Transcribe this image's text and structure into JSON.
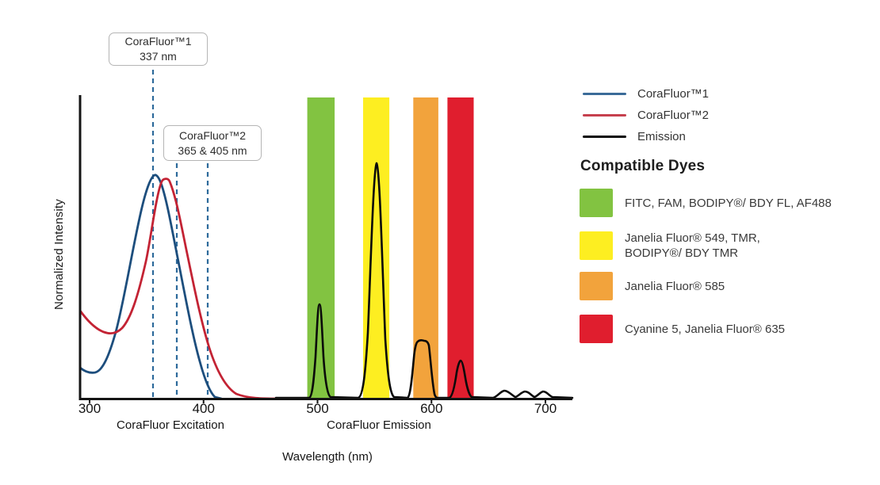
{
  "figure": {
    "y_axis_label": "Normalized Intensity",
    "x_axis_label": "Wavelength (nm)",
    "section_labels": {
      "excitation": "CoraFluor Excitation",
      "emission": "CoraFluor Emission"
    },
    "callout1": {
      "line1": "CoraFluor™1",
      "line2": "337 nm"
    },
    "callout2": {
      "line1": "CoraFluor™2",
      "line2": "365 & 405 nm"
    }
  },
  "legend": {
    "items": [
      {
        "label": "CoraFluor™1",
        "color": "#3a6b99"
      },
      {
        "label": "CoraFluor™2",
        "color": "#c6404e"
      },
      {
        "label": "Emission",
        "color": "#0a0a0a"
      }
    ]
  },
  "dyes": {
    "heading": "Compatible Dyes",
    "items": [
      {
        "color": "#82c341",
        "label": "FITC, FAM, BODIPY®/ BDY FL, AF488"
      },
      {
        "color": "#fdee21",
        "label": "Janelia Fluor® 549, TMR,\nBODIPY®/ BDY TMR"
      },
      {
        "color": "#f2a33c",
        "label": "Janelia Fluor® 585"
      },
      {
        "color": "#e01e2e",
        "label": "Cyanine 5, Janelia Fluor® 635"
      }
    ]
  },
  "chart_data": {
    "type": "line",
    "title": "CoraFluor excitation and emission spectra with compatible dye filter bands",
    "xlabel": "Wavelength (nm)",
    "ylabel": "Normalized Intensity",
    "x_range_nm": [
      300,
      724
    ],
    "ylim": [
      0,
      1
    ],
    "grid": false,
    "legend_position": "right",
    "x_ticks_nm": [
      300,
      400,
      500,
      600,
      700
    ],
    "excitation_markers": {
      "CoraFluor1_nm": 337,
      "CoraFluor2_nm": [
        365,
        405
      ]
    },
    "series": [
      {
        "name": "CoraFluor™1 excitation",
        "color": "#1d4e7d",
        "peak_nm": 358,
        "points_nm_intensity": [
          [
            300,
            0.1
          ],
          [
            308,
            0.089
          ],
          [
            315,
            0.1
          ],
          [
            322,
            0.15
          ],
          [
            330,
            0.25
          ],
          [
            340,
            0.42
          ],
          [
            348,
            0.56
          ],
          [
            355,
            0.7
          ],
          [
            358,
            0.74
          ],
          [
            362,
            0.71
          ],
          [
            370,
            0.55
          ],
          [
            378,
            0.4
          ],
          [
            385,
            0.26
          ],
          [
            393,
            0.14
          ],
          [
            400,
            0.05
          ],
          [
            406,
            0.01
          ],
          [
            410,
            0
          ]
        ]
      },
      {
        "name": "CoraFluor™2 excitation",
        "color": "#c32334",
        "peak_nm": 366,
        "points_nm_intensity": [
          [
            300,
            0.29
          ],
          [
            308,
            0.24
          ],
          [
            315,
            0.22
          ],
          [
            321,
            0.21
          ],
          [
            328,
            0.22
          ],
          [
            335,
            0.26
          ],
          [
            342,
            0.33
          ],
          [
            350,
            0.45
          ],
          [
            358,
            0.6
          ],
          [
            363,
            0.7
          ],
          [
            366,
            0.73
          ],
          [
            370,
            0.71
          ],
          [
            378,
            0.55
          ],
          [
            385,
            0.4
          ],
          [
            393,
            0.26
          ],
          [
            400,
            0.16
          ],
          [
            408,
            0.09
          ],
          [
            415,
            0.05
          ],
          [
            425,
            0.02
          ],
          [
            440,
            0.01
          ],
          [
            458,
            0
          ]
        ]
      },
      {
        "name": "Emission",
        "color": "#0a0a0a",
        "peaks_nm_height": [
          {
            "center_nm": 502,
            "height": 0.32
          },
          {
            "center_nm": 552,
            "height": 0.79
          },
          {
            "center_nm": 592,
            "height": 0.19,
            "shape": "flat-top"
          },
          {
            "center_nm": 625,
            "height": 0.13
          },
          {
            "center_nm": 664,
            "height": 0.02
          },
          {
            "center_nm": 682,
            "height": 0.02
          },
          {
            "center_nm": 698,
            "height": 0.02
          }
        ]
      }
    ],
    "filter_bands_nm": [
      {
        "color": "#82c341",
        "range_nm": [
          491,
          515
        ],
        "dyes": "FITC, FAM, BODIPY®/ BDY FL, AF488"
      },
      {
        "color": "#fdee21",
        "range_nm": [
          540,
          563
        ],
        "dyes": "Janelia Fluor® 549, TMR, BODIPY®/ BDY TMR"
      },
      {
        "color": "#f2a33c",
        "range_nm": [
          584,
          606
        ],
        "dyes": "Janelia Fluor® 585"
      },
      {
        "color": "#e01e2e",
        "range_nm": [
          614,
          637
        ],
        "dyes": "Cyanine 5, Janelia Fluor® 635"
      }
    ]
  }
}
